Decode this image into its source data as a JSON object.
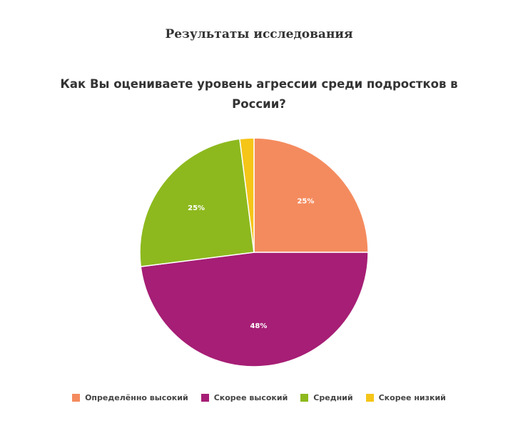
{
  "page": {
    "heading": "Результаты исследования"
  },
  "chart_data": {
    "type": "pie",
    "title": "Как Вы оцениваете уровень агрессии среди подростков в России?",
    "legend_position": "bottom",
    "slices": [
      {
        "label": "Определённо высокий",
        "value": 25,
        "display": "25%",
        "color": "#F48B5E"
      },
      {
        "label": "Скорее высокий",
        "value": 48,
        "display": "48%",
        "color": "#A61E75"
      },
      {
        "label": "Средний",
        "value": 25,
        "display": "25%",
        "color": "#8DB91E"
      },
      {
        "label": "Скорее низкий",
        "value": 2,
        "display": "",
        "color": "#F5C518"
      }
    ]
  }
}
